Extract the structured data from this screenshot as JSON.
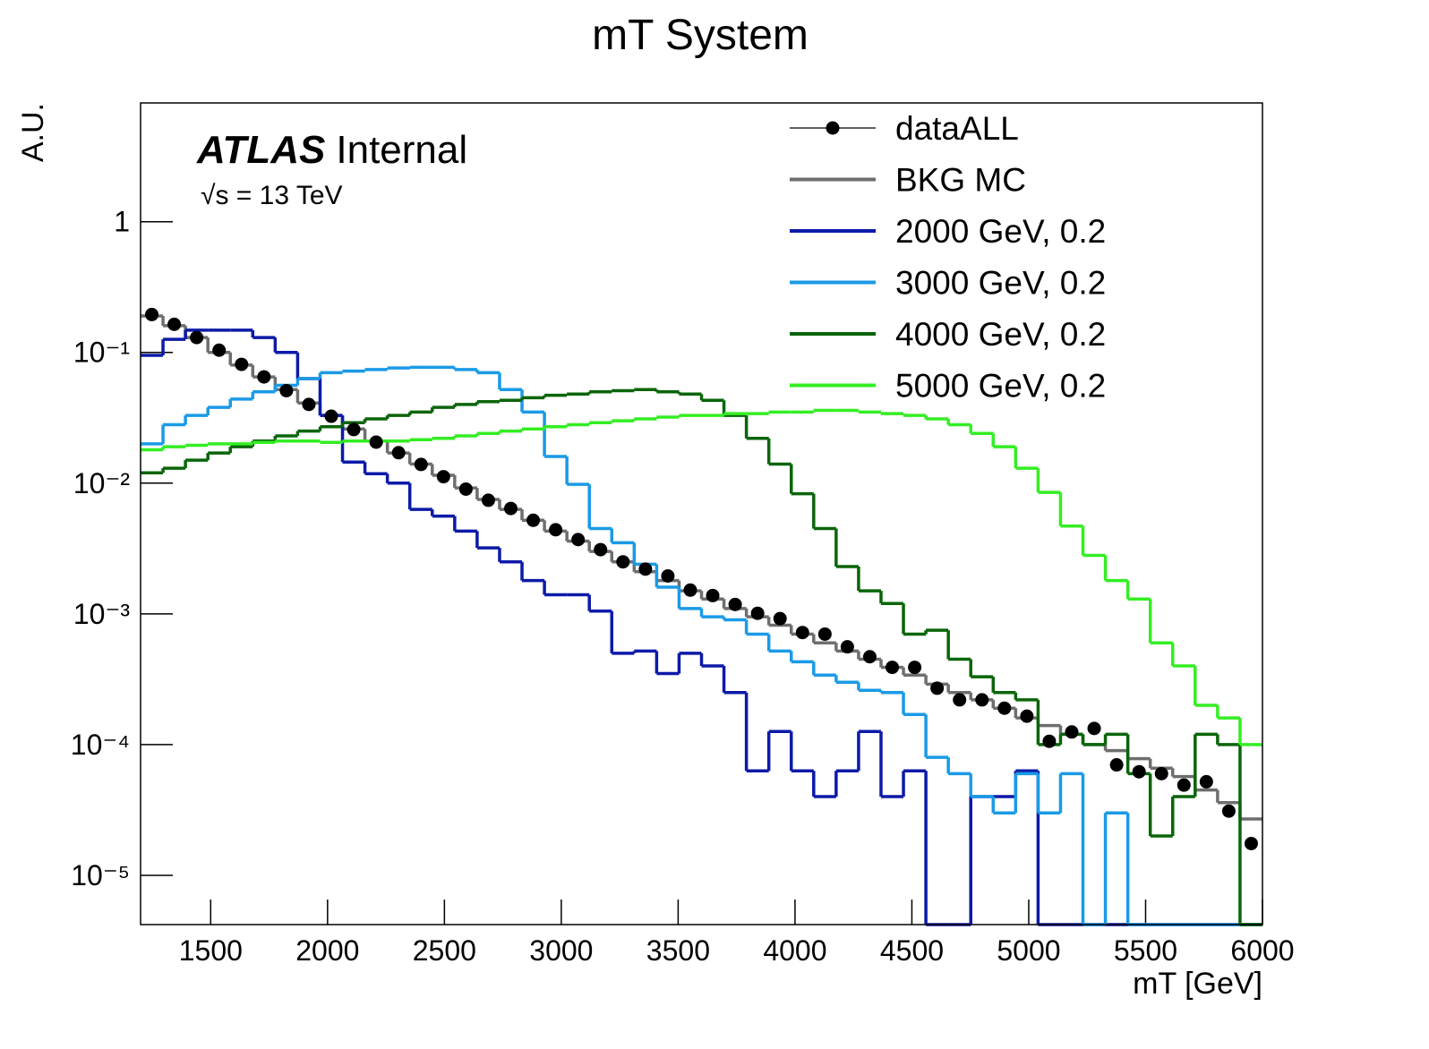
{
  "chart_data": {
    "type": "histogram",
    "title": "mT System",
    "x_label": "mT [GeV]",
    "y_label": "A.U.",
    "atlas_label": "ATLAS",
    "atlas_status": "Internal",
    "energy_label": "√s = 13 TeV",
    "log_y": true,
    "legend": "top-right",
    "xlim": [
      1200,
      6000
    ],
    "xticks": [
      1500,
      2000,
      2500,
      3000,
      3500,
      4000,
      4500,
      5000,
      5500,
      6000
    ],
    "ylim": [
      4.2e-06,
      8.1
    ],
    "yticks": [
      1,
      {
        "value": 0.1,
        "label": "10⁻¹"
      },
      {
        "value": 0.01,
        "label": "10⁻²"
      },
      {
        "value": 0.001,
        "label": "10⁻³"
      },
      {
        "value": 0.0001,
        "label": "10⁻⁴"
      },
      {
        "value": 1e-05,
        "label": "10⁻⁵"
      }
    ],
    "bins": [
      1200,
      1296,
      1392,
      1488,
      1584,
      1680,
      1776,
      1872,
      1968,
      2064,
      2160,
      2256,
      2352,
      2448,
      2544,
      2640,
      2736,
      2832,
      2928,
      3024,
      3120,
      3216,
      3312,
      3408,
      3504,
      3600,
      3696,
      3792,
      3888,
      3984,
      4080,
      4176,
      4272,
      4368,
      4464,
      4560,
      4656,
      4752,
      4848,
      4944,
      5040,
      5136,
      5232,
      5328,
      5424,
      5520,
      5616,
      5712,
      5808,
      5904,
      6000
    ],
    "series": [
      {
        "name": "BKG MC",
        "color": "#6e6e6e",
        "marker": false,
        "values": [
          0.19,
          0.16,
          0.13,
          0.1,
          0.08,
          0.065,
          0.052,
          0.041,
          0.033,
          0.026,
          0.021,
          0.017,
          0.014,
          0.0115,
          0.0092,
          0.0075,
          0.0063,
          0.0052,
          0.0043,
          0.0036,
          0.003,
          0.0025,
          0.0021,
          0.0018,
          0.0015,
          0.0013,
          0.0011,
          0.00095,
          0.00082,
          0.0007,
          0.0006,
          0.00052,
          0.00045,
          0.00039,
          0.00034,
          0.00029,
          0.00025,
          0.00022,
          0.00019,
          0.00016,
          0.00014,
          0.00012,
          0.0001,
          9e-05,
          7.8e-05,
          6.6e-05,
          5.7e-05,
          4.5e-05,
          3.6e-05,
          2.7e-05
        ]
      },
      {
        "name": "2000 GeV, 0.2",
        "color": "#0c1aa8",
        "marker": false,
        "values": [
          0.095,
          0.126,
          0.148,
          0.148,
          0.148,
          0.13,
          0.1,
          0.063,
          0.033,
          0.0145,
          0.0118,
          0.01,
          0.0063,
          0.0056,
          0.0043,
          0.0032,
          0.0025,
          0.0018,
          0.0014,
          0.0014,
          0.00105,
          0.0005,
          0.00052,
          0.00035,
          0.0005,
          0.0004,
          0.00025,
          6.3e-05,
          0.000126,
          6.3e-05,
          4e-05,
          6.3e-05,
          0.000126,
          4e-05,
          6.3e-05,
          0,
          0,
          4e-05,
          4e-05,
          6.3e-05,
          0,
          0,
          0,
          0,
          0,
          0,
          0,
          0,
          0,
          0
        ]
      },
      {
        "name": "3000 GeV, 0.2",
        "color": "#1a9ae6",
        "marker": false,
        "values": [
          0.02,
          0.028,
          0.033,
          0.038,
          0.044,
          0.05,
          0.056,
          0.063,
          0.07,
          0.072,
          0.074,
          0.076,
          0.077,
          0.077,
          0.074,
          0.07,
          0.052,
          0.035,
          0.016,
          0.0098,
          0.0045,
          0.0035,
          0.0024,
          0.0016,
          0.0011,
          0.00095,
          0.0009,
          0.0007,
          0.00052,
          0.00043,
          0.00034,
          0.0003,
          0.00026,
          0.00025,
          0.00017,
          8e-05,
          6e-05,
          4e-05,
          3e-05,
          6e-05,
          3e-05,
          6e-05,
          0,
          3e-05,
          0,
          0,
          0,
          0,
          0,
          0
        ]
      },
      {
        "name": "4000 GeV, 0.2",
        "color": "#0a650a",
        "marker": false,
        "values": [
          0.012,
          0.013,
          0.015,
          0.017,
          0.019,
          0.021,
          0.023,
          0.025,
          0.027,
          0.029,
          0.031,
          0.033,
          0.035,
          0.038,
          0.04,
          0.042,
          0.043,
          0.045,
          0.047,
          0.048,
          0.05,
          0.051,
          0.052,
          0.05,
          0.048,
          0.043,
          0.033,
          0.022,
          0.014,
          0.0083,
          0.0045,
          0.0023,
          0.0015,
          0.0012,
          0.0007,
          0.00075,
          0.00045,
          0.00033,
          0.00025,
          0.00022,
          0.0001,
          0.00012,
          0.0001,
          0.00012,
          6e-05,
          2e-05,
          4e-05,
          0.00012,
          0.0001,
          0
        ]
      },
      {
        "name": "5000 GeV, 0.2",
        "color": "#33ee22",
        "marker": false,
        "values": [
          0.018,
          0.019,
          0.0195,
          0.02,
          0.02,
          0.0205,
          0.021,
          0.021,
          0.0205,
          0.021,
          0.021,
          0.021,
          0.0215,
          0.022,
          0.023,
          0.024,
          0.025,
          0.026,
          0.027,
          0.028,
          0.029,
          0.03,
          0.031,
          0.032,
          0.033,
          0.033,
          0.034,
          0.034,
          0.035,
          0.035,
          0.036,
          0.036,
          0.035,
          0.034,
          0.033,
          0.031,
          0.028,
          0.024,
          0.019,
          0.013,
          0.0085,
          0.0047,
          0.0028,
          0.0018,
          0.0013,
          0.0006,
          0.0004,
          0.0002,
          0.00016,
          0.0001
        ]
      },
      {
        "name": "dataALL",
        "color": "#000000",
        "marker": true,
        "values": [
          0.195,
          0.164,
          0.13,
          0.104,
          0.081,
          0.065,
          0.051,
          0.04,
          0.0325,
          0.0257,
          0.0206,
          0.0171,
          0.0139,
          0.0112,
          0.009,
          0.0074,
          0.0064,
          0.0052,
          0.0044,
          0.0037,
          0.0031,
          0.0025,
          0.0022,
          0.00195,
          0.00152,
          0.00138,
          0.00118,
          0.00101,
          0.00092,
          0.00072,
          0.0007,
          0.00056,
          0.00047,
          0.00039,
          0.00039,
          0.00027,
          0.00022,
          0.00022,
          0.00019,
          0.000165,
          0.000106,
          0.000125,
          0.000133,
          7e-05,
          6.2e-05,
          6e-05,
          4.9e-05,
          5.2e-05,
          3.1e-05,
          1.75e-05
        ]
      }
    ]
  }
}
